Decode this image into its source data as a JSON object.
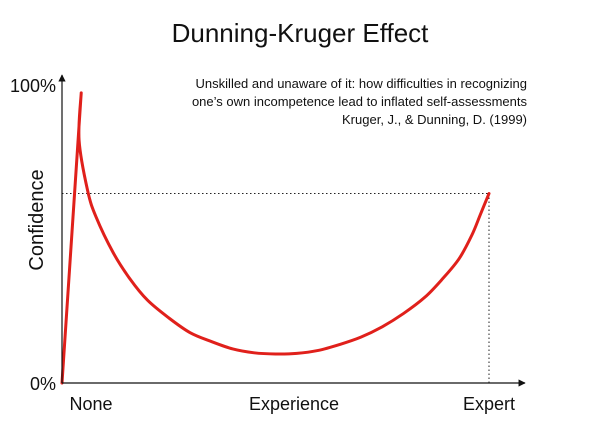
{
  "chart_data": {
    "type": "line",
    "title": "Dunning-Kruger Effect",
    "annotation": [
      "Unskilled and unaware of it: how difficulties in recognizing",
      "one’s own incompetence lead to inflated self-assessments",
      "Kruger, J., & Dunning, D. (1999)"
    ],
    "xlabel": "",
    "ylabel": "Confidence",
    "x_ticks": [
      {
        "label": "None",
        "value": 0
      },
      {
        "label": "Experience",
        "value": 50
      },
      {
        "label": "Expert",
        "value": 100
      }
    ],
    "y_ticks": [
      {
        "label": "100%",
        "value": 100
      },
      {
        "label": "0%",
        "value": 0
      }
    ],
    "xlim": [
      0,
      100
    ],
    "ylim": [
      0,
      100
    ],
    "grid": false,
    "series": [
      {
        "color": "#e0201b",
        "points": [
          {
            "x": 0,
            "y": 0
          },
          {
            "x": 4.5,
            "y": 98
          },
          {
            "x": 4.0,
            "y": 82
          },
          {
            "x": 6,
            "y": 65
          },
          {
            "x": 8,
            "y": 56
          },
          {
            "x": 12,
            "y": 44
          },
          {
            "x": 16,
            "y": 35
          },
          {
            "x": 20,
            "y": 28
          },
          {
            "x": 25,
            "y": 22
          },
          {
            "x": 30,
            "y": 17
          },
          {
            "x": 35,
            "y": 14
          },
          {
            "x": 40,
            "y": 11.5
          },
          {
            "x": 45,
            "y": 10.2
          },
          {
            "x": 50,
            "y": 9.8
          },
          {
            "x": 55,
            "y": 10
          },
          {
            "x": 60,
            "y": 11
          },
          {
            "x": 65,
            "y": 13
          },
          {
            "x": 70,
            "y": 15.5
          },
          {
            "x": 75,
            "y": 19
          },
          {
            "x": 80,
            "y": 23.5
          },
          {
            "x": 85,
            "y": 29
          },
          {
            "x": 89,
            "y": 35
          },
          {
            "x": 93,
            "y": 42
          },
          {
            "x": 96,
            "y": 50
          },
          {
            "x": 98,
            "y": 57
          },
          {
            "x": 100,
            "y": 64
          }
        ]
      }
    ],
    "reference_lines": [
      {
        "type": "horizontal",
        "y": 64,
        "x_from": 0,
        "x_to": 100,
        "style": "dotted"
      },
      {
        "type": "vertical",
        "x": 100,
        "y_from": 0,
        "y_to": 64,
        "style": "dotted"
      }
    ]
  }
}
